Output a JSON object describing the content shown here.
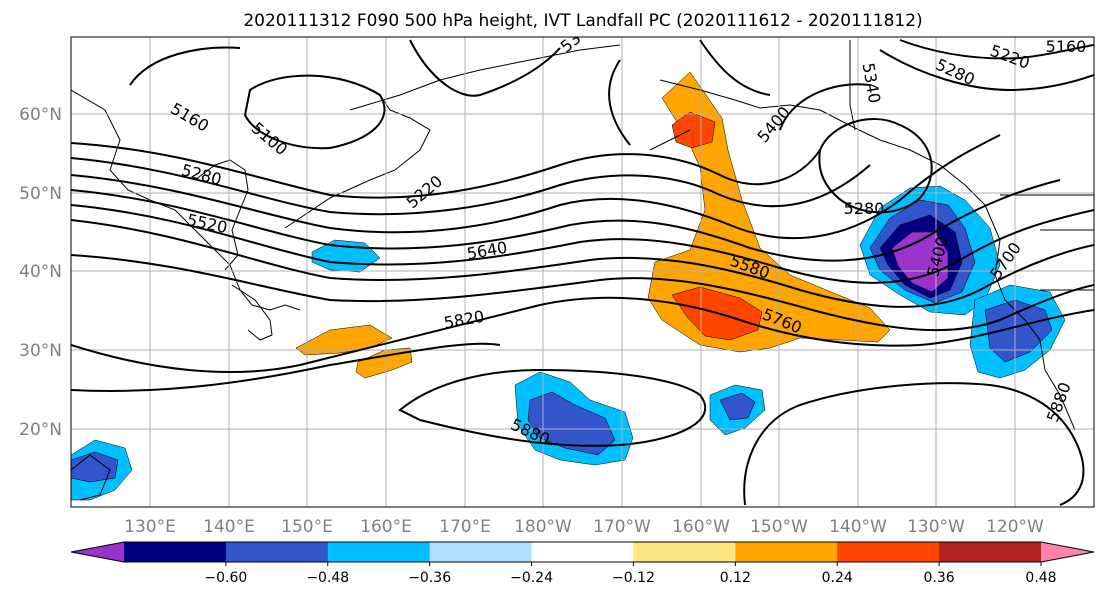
{
  "title": "2020111312 F090 500 hPa height, IVT Landfall PC (2020111612 - 2020111812)",
  "lon_labels": [
    "130°E",
    "140°E",
    "150°E",
    "160°E",
    "170°E",
    "180°W",
    "170°W",
    "160°W",
    "150°W",
    "140°W",
    "130°W",
    "120°W"
  ],
  "lat_labels": [
    "60°N",
    "50°N",
    "40°N",
    "30°N",
    "20°N"
  ],
  "contour_labels": [
    {
      "text": "5160",
      "angle": 30
    },
    {
      "text": "5100",
      "angle": 40
    },
    {
      "text": "5280",
      "angle": 15
    },
    {
      "text": "5520",
      "angle": 12
    },
    {
      "text": "5220",
      "angle": -40
    },
    {
      "text": "5640",
      "angle": -10
    },
    {
      "text": "5820",
      "angle": -10
    },
    {
      "text": "5880",
      "angle": 25
    },
    {
      "text": "5580",
      "angle": 20
    },
    {
      "text": "5760",
      "angle": 22
    },
    {
      "text": "5280",
      "angle": 0
    },
    {
      "text": "5340",
      "angle": 80
    },
    {
      "text": "5340",
      "angle": -40
    },
    {
      "text": "5280",
      "angle": 25
    },
    {
      "text": "5220",
      "angle": 20
    },
    {
      "text": "5160",
      "angle": 0
    },
    {
      "text": "5400",
      "angle": -75
    },
    {
      "text": "5700",
      "angle": -55
    },
    {
      "text": "5880",
      "angle": -70
    },
    {
      "text": "5400",
      "angle": -50
    }
  ],
  "colorbar": {
    "colors": [
      "#9933cc",
      "#000080",
      "#3355cc",
      "#00bfff",
      "#b0e0ff",
      "#ffffff",
      "#ffe680",
      "#ffa500",
      "#ff4500",
      "#b22222",
      "#ff85b0"
    ],
    "tick_labels": [
      "−0.60",
      "−0.48",
      "−0.36",
      "−0.24",
      "−0.12",
      "0.12",
      "0.24",
      "0.36",
      "0.48",
      "0.60"
    ]
  },
  "shading_colors": {
    "purple": "#9933cc",
    "navy": "#000080",
    "blue": "#3355cc",
    "cyan": "#00bfff",
    "orange": "#ffa500",
    "red": "#ff4500"
  }
}
